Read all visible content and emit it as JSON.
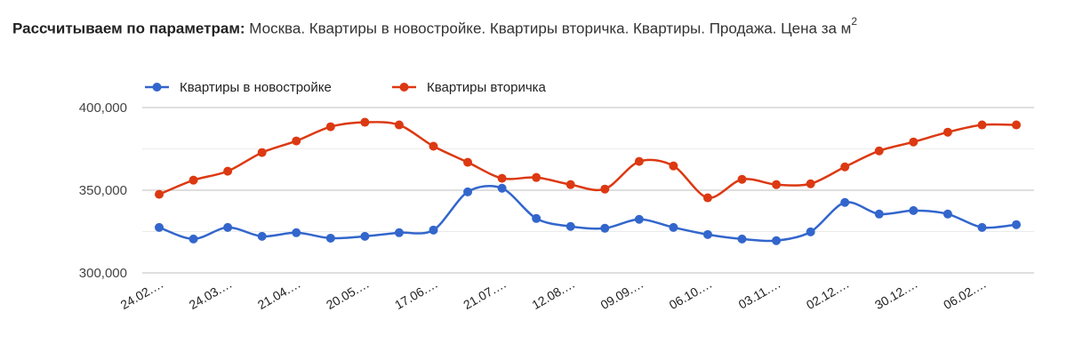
{
  "header": {
    "title_bold": "Рассчитываем по параметрам:",
    "title_rest": " Москва. Квартиры в новостройке. Квартиры вторичка. Квартиры. Продажа. Цена за м",
    "title_sup": "2"
  },
  "colors": {
    "series_new": "#3366cc",
    "series_secondary": "#dc3912",
    "grid_major": "#cccccc",
    "grid_minor": "#ebebeb"
  },
  "chart_data": {
    "type": "line",
    "title": "Рассчитываем по параметрам: Москва. Квартиры в новостройке. Квартиры вторичка. Квартиры. Продажа. Цена за м2",
    "xlabel": "",
    "ylabel": "",
    "ylim": [
      300000,
      400000
    ],
    "y_ticks": [
      "300,000",
      "350,000",
      "400,000"
    ],
    "grid": true,
    "legend_position": "top",
    "x_tick_labels": [
      "24.02.…",
      "24.03.…",
      "21.04.…",
      "20.05.…",
      "17.06.…",
      "21.07.…",
      "12.08.…",
      "09.09.…",
      "06.10.…",
      "03.11.…",
      "02.12.…",
      "30.12.…",
      "06.02.…"
    ],
    "x_tick_indices": [
      0,
      2,
      4,
      6,
      8,
      10,
      12,
      14,
      16,
      18,
      20,
      22,
      24
    ],
    "point_count": 26,
    "series": [
      {
        "name": "Квартиры в новостройке",
        "color": "#3366cc",
        "values": [
          327500,
          320500,
          327500,
          322100,
          324300,
          321000,
          322100,
          324300,
          325900,
          349000,
          351200,
          332900,
          328100,
          327000,
          332400,
          327500,
          323200,
          320500,
          319500,
          324800,
          342600,
          335600,
          337700,
          335600,
          327500,
          329200
        ]
      },
      {
        "name": "Квартиры вторичка",
        "color": "#dc3912",
        "values": [
          347500,
          356100,
          361500,
          372800,
          379800,
          388400,
          391100,
          389500,
          376600,
          366900,
          357200,
          357700,
          353400,
          350700,
          367400,
          364700,
          345400,
          356600,
          353400,
          353900,
          364100,
          373800,
          379200,
          385100,
          389500,
          389500
        ]
      }
    ]
  }
}
